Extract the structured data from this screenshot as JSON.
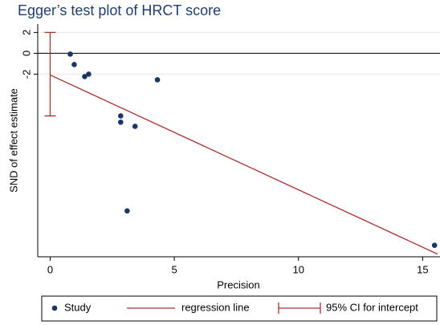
{
  "chart_data": {
    "type": "scatter",
    "title": "Egger’s test plot of HRCT score",
    "xlabel": "Precision",
    "ylabel": "SND of effect estimate",
    "xlim": [
      -0.5,
      15.7
    ],
    "ylim": [
      -19.5,
      2.8
    ],
    "xticks": [
      0,
      5,
      10,
      15
    ],
    "yticks": [
      2,
      0,
      -2
    ],
    "grid": true,
    "hline": 0,
    "series": [
      {
        "name": "Study",
        "color": "#1a3567",
        "x": [
          0.81,
          0.97,
          1.39,
          1.55,
          4.32,
          2.84,
          2.84,
          3.42,
          3.1,
          15.48
        ],
        "values": [
          -0.08,
          -1.08,
          -2.23,
          -2.0,
          -2.54,
          -6.0,
          -6.6,
          -7.0,
          -15.1,
          -18.4
        ]
      }
    ],
    "regression": {
      "name": "regression line",
      "color": "#a8302e",
      "x": [
        0,
        15.6
      ],
      "values": [
        -2.08,
        -19.24
      ]
    },
    "ci": {
      "name": "95% CI for intercept",
      "color": "#a8302e",
      "x": 0,
      "lower": -6.0,
      "upper": 2.0
    }
  }
}
